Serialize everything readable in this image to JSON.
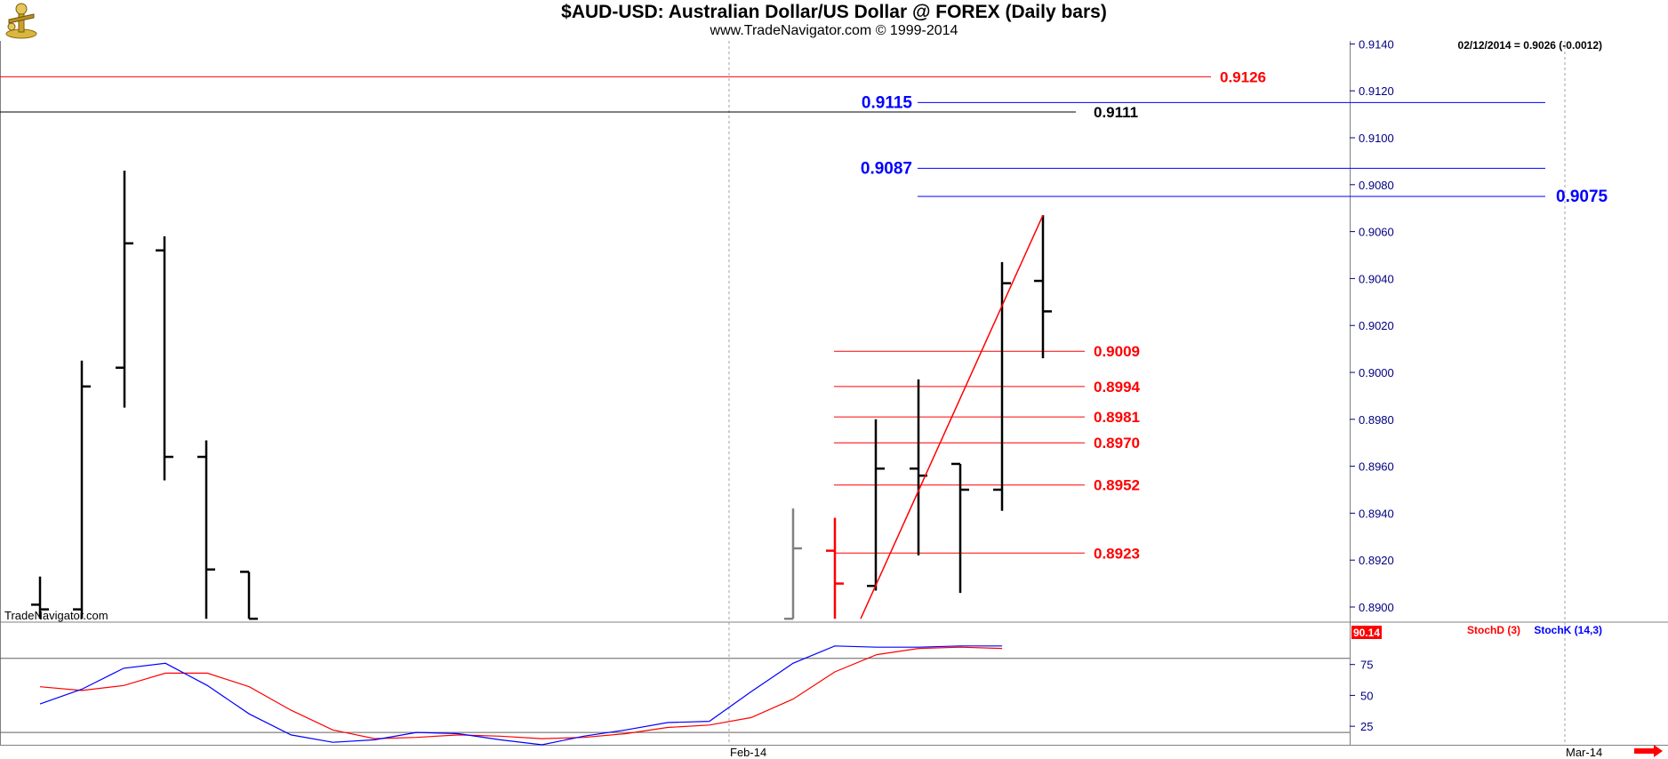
{
  "header": {
    "title": "$AUD-USD:  Australian Dollar/US Dollar @ FOREX  (Daily bars)",
    "subtitle": "www.TradeNavigator.com © 1999-2014"
  },
  "chart_data": [
    {
      "type": "ohlc",
      "panel": "price",
      "quote": "02/12/2014 = 0.9026 (-0.0012)",
      "watermark": "TradeNavigator.com",
      "ylim": [
        0.8895,
        0.9145
      ],
      "y_ticks": [
        "0.8900",
        "0.8920",
        "0.8940",
        "0.8960",
        "0.8980",
        "0.9000",
        "0.9020",
        "0.9040",
        "0.9060",
        "0.9080",
        "0.9100",
        "0.9120",
        "0.9140"
      ],
      "x_ticks": [
        "Feb-14",
        "Mar-14"
      ],
      "bars": [
        {
          "o": 0.8901,
          "h": 0.8913,
          "l": 0.8895,
          "c": 0.8899,
          "color": "#000000"
        },
        {
          "o": 0.8899,
          "h": 0.9005,
          "l": 0.8895,
          "c": 0.8994,
          "color": "#000000"
        },
        {
          "o": 0.9002,
          "h": 0.9086,
          "l": 0.8985,
          "c": 0.9055,
          "color": "#000000"
        },
        {
          "o": 0.9052,
          "h": 0.9058,
          "l": 0.8954,
          "c": 0.8964,
          "color": "#000000"
        },
        {
          "o": 0.8964,
          "h": 0.8971,
          "l": 0.8895,
          "c": 0.8916,
          "color": "#000000"
        },
        {
          "o": 0.8915,
          "h": 0.8915,
          "l": 0.8895,
          "c": 0.8895,
          "color": "#000000"
        },
        {
          "o": 0.8895,
          "h": 0.8942,
          "l": 0.8895,
          "c": 0.8925,
          "color": "#808080"
        },
        {
          "o": 0.8924,
          "h": 0.8938,
          "l": 0.8895,
          "c": 0.891,
          "color": "#ff0000"
        },
        {
          "o": 0.8909,
          "h": 0.898,
          "l": 0.8907,
          "c": 0.8959,
          "color": "#000000"
        },
        {
          "o": 0.8959,
          "h": 0.8997,
          "l": 0.8922,
          "c": 0.8956,
          "color": "#000000"
        },
        {
          "o": 0.8961,
          "h": 0.8961,
          "l": 0.8906,
          "c": 0.895,
          "color": "#000000"
        },
        {
          "o": 0.895,
          "h": 0.9047,
          "l": 0.8941,
          "c": 0.9038,
          "color": "#000000"
        },
        {
          "o": 0.9039,
          "h": 0.9067,
          "l": 0.9006,
          "c": 0.9026,
          "color": "#000000"
        }
      ],
      "trendline": {
        "from": 0.8895,
        "to": 0.9067,
        "color": "#ff0000"
      },
      "levels": [
        {
          "label": "0.9126",
          "value": 0.9126,
          "color": "#ff0000"
        },
        {
          "label": "0.9111",
          "value": 0.9111,
          "color": "#000000"
        },
        {
          "label": "0.9115",
          "value": 0.9115,
          "color": "#0000ff"
        },
        {
          "label": "0.9087",
          "value": 0.9087,
          "color": "#0000ff"
        },
        {
          "label": "0.9075",
          "value": 0.9075,
          "color": "#0000ff"
        },
        {
          "label": "0.9009",
          "value": 0.9009,
          "color": "#ff0000"
        },
        {
          "label": "0.8994",
          "value": 0.8994,
          "color": "#ff0000"
        },
        {
          "label": "0.8981",
          "value": 0.8981,
          "color": "#ff0000"
        },
        {
          "label": "0.8970",
          "value": 0.897,
          "color": "#ff0000"
        },
        {
          "label": "0.8952",
          "value": 0.8952,
          "color": "#ff0000"
        },
        {
          "label": "0.8923",
          "value": 0.8923,
          "color": "#ff0000"
        }
      ]
    },
    {
      "type": "line",
      "panel": "stochastic",
      "ylim": [
        10,
        105
      ],
      "y_ticks": [
        "25",
        "50",
        "75"
      ],
      "current_value": "90.14",
      "series": [
        {
          "name": "StochD (3)",
          "color": "#ff0000",
          "values": [
            57,
            54,
            58,
            68,
            68,
            57,
            38,
            22,
            15,
            16,
            18,
            17,
            15,
            16,
            19,
            24,
            26,
            32,
            47,
            69,
            83,
            88,
            89,
            88
          ]
        },
        {
          "name": "StochK (14,3)",
          "color": "#0000ff",
          "values": [
            43,
            55,
            72,
            76,
            58,
            35,
            18,
            12,
            14,
            20,
            19,
            14,
            10,
            17,
            22,
            28,
            29,
            53,
            76,
            90,
            89,
            89,
            90,
            90
          ]
        }
      ],
      "reference_lines": [
        20,
        80
      ]
    }
  ],
  "icons": {
    "logo": "trade-navigator-logo-icon",
    "scroll": "right-arrow-icon"
  },
  "colors": {
    "accent_blue": "#0000ff",
    "accent_red": "#ff0000",
    "axis_text": "#000080"
  }
}
